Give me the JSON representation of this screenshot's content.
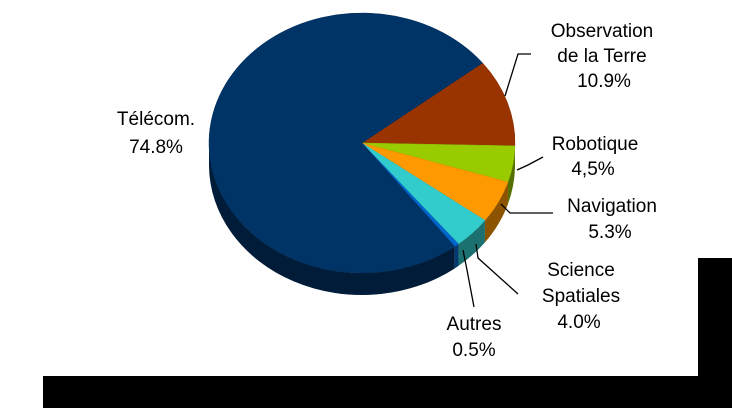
{
  "chart_data": {
    "type": "pie",
    "style": "3d",
    "slices": [
      {
        "label": "Télécom.",
        "value_label": "74.8%",
        "value": 74.8,
        "color": "#003366"
      },
      {
        "label": "Observation de la Terre",
        "label_lines": [
          "Observation",
          "de la Terre"
        ],
        "value_label": "10.9%",
        "value": 10.9,
        "color": "#993300"
      },
      {
        "label": "Robotique",
        "label_lines": [
          "Robotique"
        ],
        "value_label": "4,5%",
        "value": 4.5,
        "color": "#99CC00"
      },
      {
        "label": "Navigation",
        "label_lines": [
          "Navigation"
        ],
        "value_label": "5.3%",
        "value": 5.3,
        "color": "#FF9900"
      },
      {
        "label": "Science Spatiales",
        "label_lines": [
          "Science",
          "Spatiales"
        ],
        "value_label": "4.0%",
        "value": 4.0,
        "color": "#33CCCC"
      },
      {
        "label": "Autres",
        "label_lines": [
          "Autres"
        ],
        "value_label": "0.5%",
        "value": 0.5,
        "color": "#0066CC"
      }
    ]
  }
}
